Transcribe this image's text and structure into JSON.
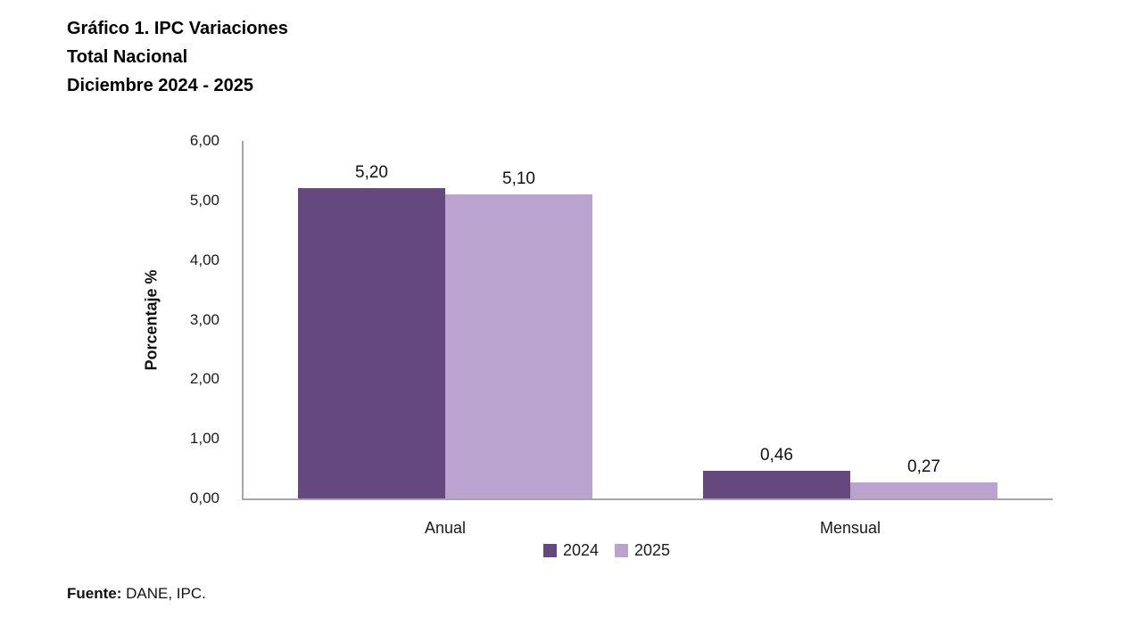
{
  "header": {
    "title_lines": [
      "Gráfico 1. IPC Variaciones",
      "Total Nacional",
      "Diciembre 2024 - 2025"
    ]
  },
  "footer": {
    "source_label": "Fuente:",
    "source_text": " DANE, IPC."
  },
  "colors": {
    "series_2024": "#65497e",
    "series_2025": "#baa4cf",
    "axis": "#a6a6a6",
    "text": "#1a1a1a"
  },
  "chart_data": {
    "type": "bar",
    "title": "Gráfico 1. IPC Variaciones — Total Nacional — Diciembre 2024 - 2025",
    "categories": [
      "Anual",
      "Mensual"
    ],
    "series": [
      {
        "name": "2024",
        "color": "#65497e",
        "values": [
          5.2,
          0.46
        ],
        "labels": [
          "5,20",
          "0,46"
        ]
      },
      {
        "name": "2025",
        "color": "#baa4cf",
        "values": [
          5.1,
          0.27
        ],
        "labels": [
          "5,10",
          "0,27"
        ]
      }
    ],
    "xlabel": "",
    "ylabel": "Porcentaje %",
    "ylim": [
      0,
      6
    ],
    "ytick_step": 1,
    "ytick_labels": [
      "0,00",
      "1,00",
      "2,00",
      "3,00",
      "4,00",
      "5,00",
      "6,00"
    ],
    "grid": false,
    "legend_position": "bottom",
    "value_labels_shown": true
  }
}
